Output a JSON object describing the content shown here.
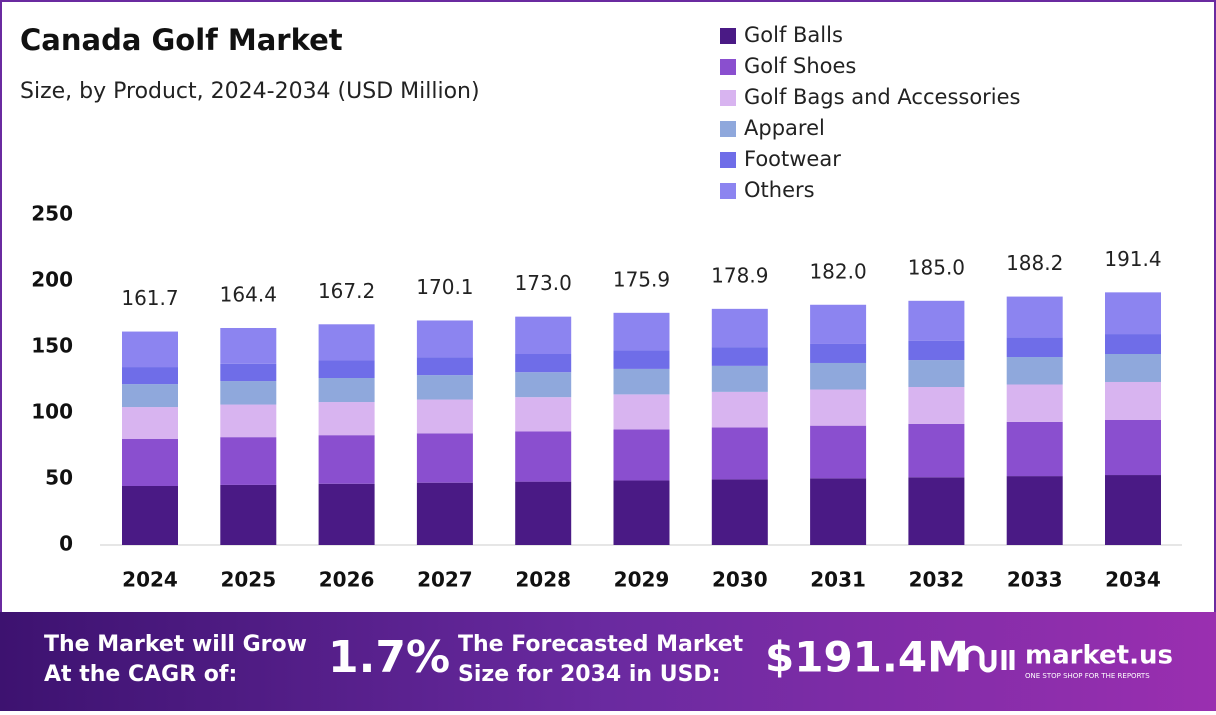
{
  "chart_data": {
    "type": "stacked_bar",
    "title": "Canada Golf Market",
    "subtitle": "Size, by Product, 2024-2034 (USD Million)",
    "categories": [
      "2024",
      "2025",
      "2026",
      "2027",
      "2028",
      "2029",
      "2030",
      "2031",
      "2032",
      "2033",
      "2034"
    ],
    "series": [
      {
        "name": "Golf Balls",
        "color": "#4a1a85",
        "values": [
          44.7,
          45.5,
          46.4,
          47.2,
          48.0,
          48.9,
          49.7,
          50.5,
          51.3,
          52.2,
          53.0
        ]
      },
      {
        "name": "Golf Shoes",
        "color": "#8a4fcf",
        "values": [
          35.6,
          36.2,
          36.8,
          37.4,
          38.0,
          38.7,
          39.3,
          39.9,
          40.5,
          41.1,
          41.7
        ]
      },
      {
        "name": "Golf Bags and Accessories",
        "color": "#d8b4f0",
        "values": [
          24.2,
          24.7,
          25.1,
          25.6,
          26.0,
          26.5,
          27.0,
          27.4,
          27.9,
          28.3,
          28.8
        ]
      },
      {
        "name": "Apparel",
        "color": "#8fa8dc",
        "values": [
          17.4,
          17.8,
          18.2,
          18.5,
          18.9,
          19.3,
          19.7,
          20.1,
          20.4,
          20.8,
          21.2
        ]
      },
      {
        "name": "Footwear",
        "color": "#6f6de8",
        "values": [
          12.9,
          13.1,
          13.3,
          13.6,
          13.8,
          14.0,
          14.2,
          14.4,
          14.7,
          14.9,
          15.1
        ]
      },
      {
        "name": "Others",
        "color": "#8c84f0",
        "values": [
          26.9,
          27.1,
          27.4,
          27.8,
          28.3,
          28.5,
          29.0,
          29.7,
          30.2,
          30.9,
          31.6
        ]
      }
    ],
    "total_labels": [
      "161.7",
      "164.4",
      "167.2",
      "170.1",
      "173.0",
      "175.9",
      "178.9",
      "182.0",
      "185.0",
      "188.2",
      "191.4"
    ],
    "ylim": [
      0,
      250
    ],
    "yticks": [
      0,
      50,
      100,
      150,
      200,
      250
    ]
  },
  "footer": {
    "cagr_lines": [
      "The Market will Grow",
      "At the CAGR of:"
    ],
    "cagr_value": "1.7%",
    "forecast_lines": [
      "The Forecasted Market",
      "Size for 2034 in USD:"
    ],
    "forecast_value": "$191.4M",
    "brand": "market.us",
    "tagline": "ONE STOP SHOP FOR THE REPORTS"
  }
}
